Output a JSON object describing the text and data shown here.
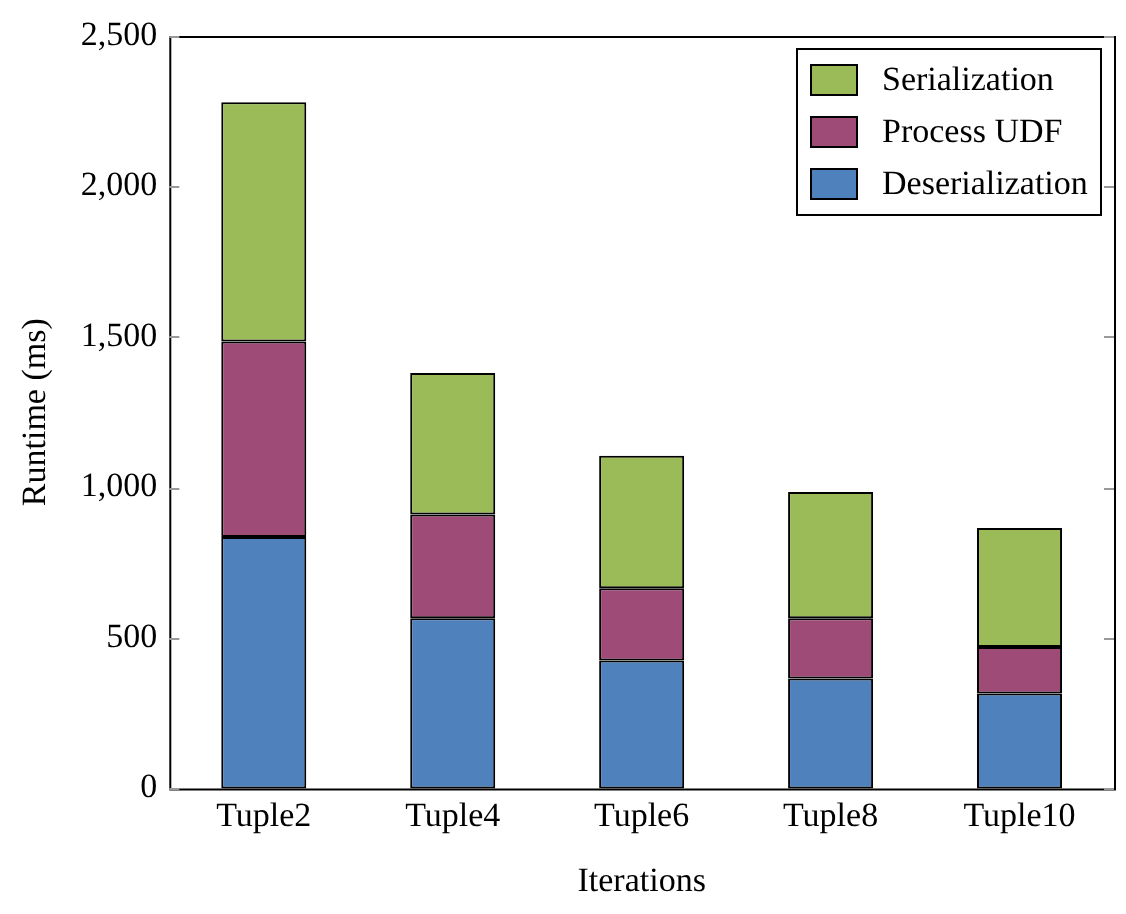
{
  "chart_data": {
    "type": "bar",
    "stacked": true,
    "xlabel": "Iterations",
    "ylabel": "Runtime (ms)",
    "categories": [
      "Tuple2",
      "Tuple4",
      "Tuple6",
      "Tuple8",
      "Tuple10"
    ],
    "series": [
      {
        "name": "Deserialization",
        "color": "#4f81bd",
        "values": [
          835,
          565,
          425,
          365,
          315
        ]
      },
      {
        "name": "Process UDF",
        "color": "#9e4b77",
        "values": [
          650,
          345,
          240,
          200,
          155
        ]
      },
      {
        "name": "Serialization",
        "color": "#9bbb59",
        "values": [
          795,
          470,
          440,
          420,
          395
        ]
      }
    ],
    "ylim": [
      0,
      2500
    ],
    "yticks": [
      0,
      500,
      {
        "value": 1000,
        "label": "1,000"
      },
      {
        "value": 1500,
        "label": "1,500"
      },
      {
        "value": 2000,
        "label": "2,000"
      },
      {
        "value": 2500,
        "label": "2,500"
      }
    ],
    "grid": false,
    "legend": "top right"
  }
}
